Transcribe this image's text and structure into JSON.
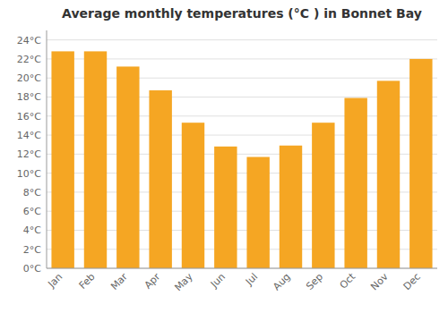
{
  "chart_data": {
    "type": "bar",
    "title": "Average monthly temperatures (°C ) in Bonnet Bay",
    "categories": [
      "Jan",
      "Feb",
      "Mar",
      "Apr",
      "May",
      "Jun",
      "Jul",
      "Aug",
      "Sep",
      "Oct",
      "Nov",
      "Dec"
    ],
    "values": [
      22.8,
      22.8,
      21.2,
      18.7,
      15.3,
      12.8,
      11.7,
      12.9,
      15.3,
      17.9,
      19.7,
      22.0
    ],
    "color": "#F5A623",
    "ylim": [
      0,
      25
    ],
    "yticks": [
      {
        "value": 0,
        "label": "0°C"
      },
      {
        "value": 2,
        "label": "2°C"
      },
      {
        "value": 4,
        "label": "4°C"
      },
      {
        "value": 6,
        "label": "6°C"
      },
      {
        "value": 8,
        "label": "8°C"
      },
      {
        "value": 10,
        "label": "10°C"
      },
      {
        "value": 12,
        "label": "12°C"
      },
      {
        "value": 14,
        "label": "14°C"
      },
      {
        "value": 16,
        "label": "16°C"
      },
      {
        "value": 18,
        "label": "18°C"
      },
      {
        "value": 20,
        "label": "20°C"
      },
      {
        "value": 22,
        "label": "22°C"
      },
      {
        "value": 24,
        "label": "24°C"
      }
    ],
    "grid": true
  }
}
